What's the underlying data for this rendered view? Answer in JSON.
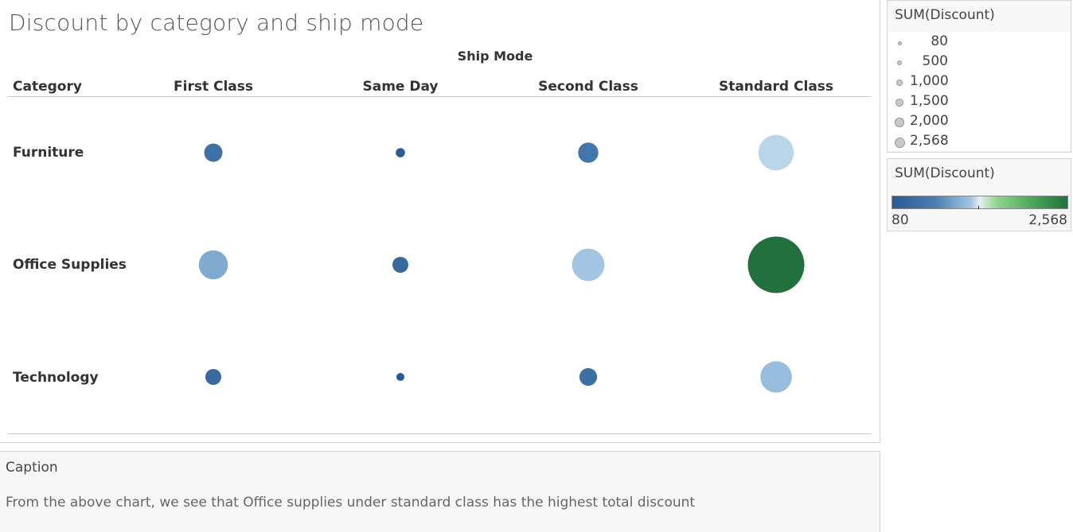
{
  "chart_data": {
    "type": "scatter",
    "title": "Discount by category and ship mode",
    "column_header": "Ship Mode",
    "row_header": "Category",
    "columns": [
      "First Class",
      "Same Day",
      "Second Class",
      "Standard Class"
    ],
    "rows": [
      "Furniture",
      "Office Supplies",
      "Technology"
    ],
    "measure": "SUM(Discount)",
    "values": [
      [
        320,
        100,
        380,
        1060
      ],
      [
        740,
        250,
        900,
        2568
      ],
      [
        250,
        80,
        300,
        850
      ]
    ],
    "size_range": [
      80,
      2568
    ],
    "color_range": [
      80,
      2568
    ],
    "colors": [
      "#2a5a91",
      "#4d7fb4",
      "#a3c7e3",
      "#e6eef0",
      "#8fd48a",
      "#4aa85a",
      "#22703e"
    ],
    "grid": false
  },
  "size_legend": {
    "title": "SUM(Discount)",
    "items": [
      {
        "label": "80",
        "value": 80
      },
      {
        "label": "500",
        "value": 500
      },
      {
        "label": "1,000",
        "value": 1000
      },
      {
        "label": "1,500",
        "value": 1500
      },
      {
        "label": "2,000",
        "value": 2000
      },
      {
        "label": "2,568",
        "value": 2568
      }
    ]
  },
  "color_legend": {
    "title": "SUM(Discount)",
    "min_label": "80",
    "max_label": "2,568"
  },
  "caption": {
    "title": "Caption",
    "text": "From the above chart, we see that Office supplies under standard class has the highest total discount"
  }
}
